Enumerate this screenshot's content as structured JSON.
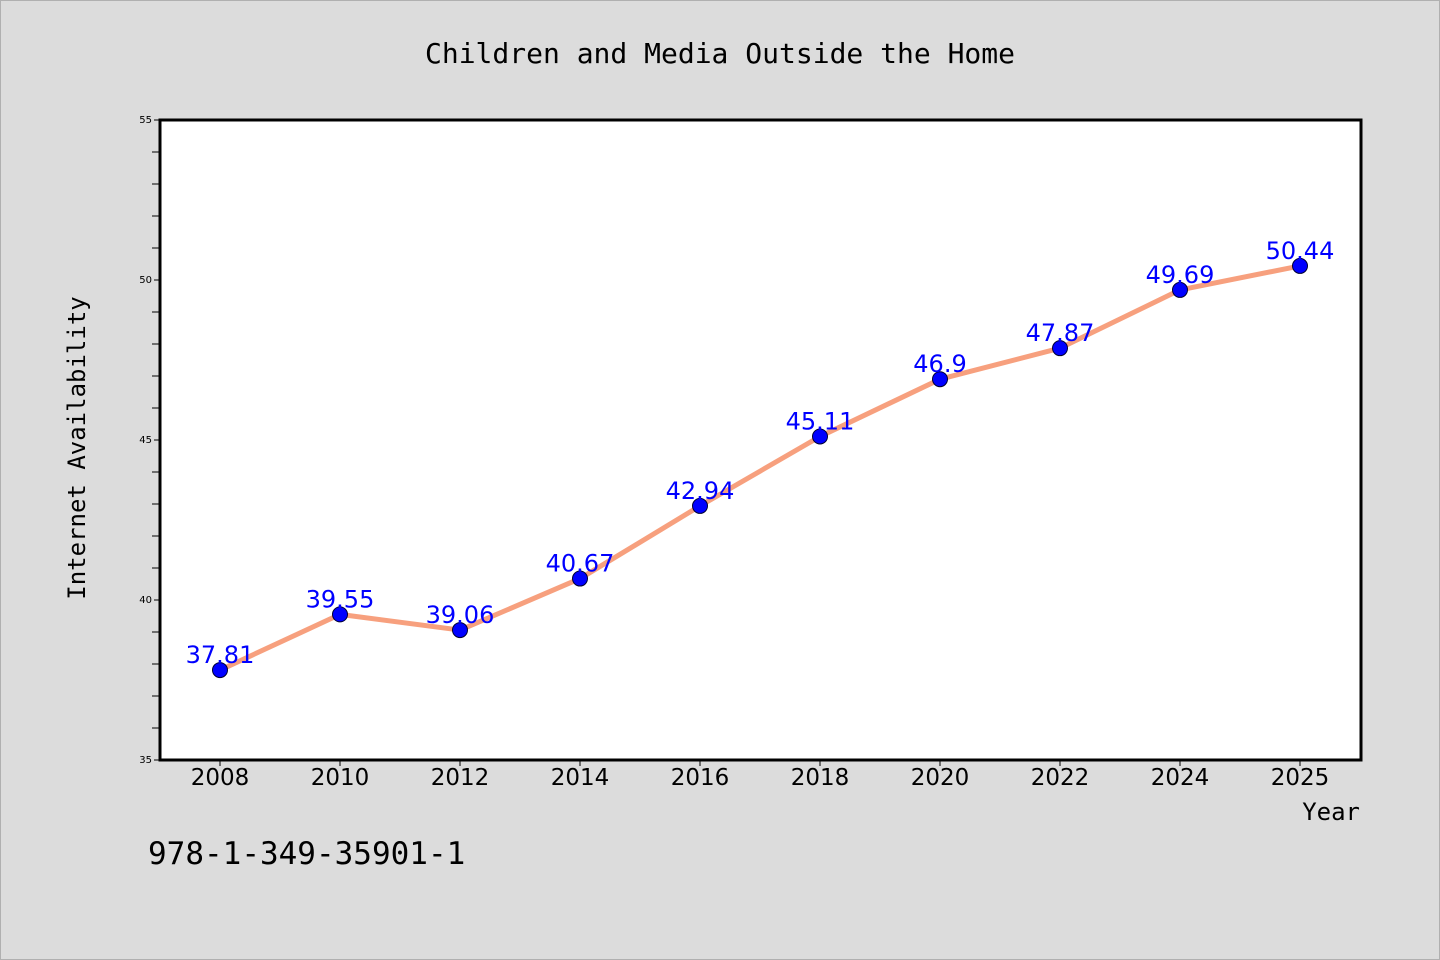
{
  "chart_data": {
    "type": "line",
    "title": "Children and Media Outside the Home",
    "xlabel": "Year",
    "ylabel": "Internet Availability",
    "x": [
      "2008",
      "2010",
      "2012",
      "2014",
      "2016",
      "2018",
      "2020",
      "2022",
      "2024",
      "2025"
    ],
    "series": [
      {
        "values": [
          37.81,
          39.55,
          39.06,
          40.67,
          42.94,
          45.11,
          46.9,
          47.87,
          49.69,
          50.44
        ],
        "data_labels": [
          "37.81",
          "39.55",
          "39.06",
          "40.67",
          "42.94",
          "45.11",
          "46.9",
          "47.87",
          "49.69",
          "50.44"
        ],
        "line_color": "#f7a07e",
        "marker_color": "#0000ff"
      }
    ],
    "ylim": [
      35,
      55
    ],
    "yticks": [
      "35",
      "40",
      "45",
      "50",
      "55"
    ],
    "grid": false,
    "legend": "none"
  },
  "footer": {
    "isbn": "978-1-349-35901-1"
  }
}
